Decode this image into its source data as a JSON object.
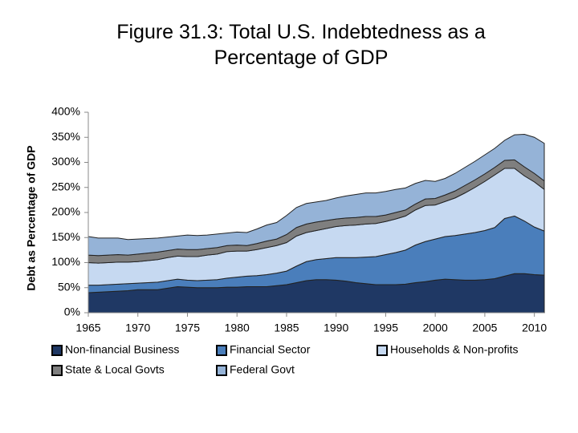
{
  "chart_data": {
    "type": "stacked-area",
    "title": "Figure 31.3: Total U.S. Indebtedness as a Percentage of GDP",
    "y_label": "Debt as Percentage of GDP",
    "x": [
      1965,
      1966,
      1967,
      1968,
      1969,
      1970,
      1971,
      1972,
      1973,
      1974,
      1975,
      1976,
      1977,
      1978,
      1979,
      1980,
      1981,
      1982,
      1983,
      1984,
      1985,
      1986,
      1987,
      1988,
      1989,
      1990,
      1991,
      1992,
      1993,
      1994,
      1995,
      1996,
      1997,
      1998,
      1999,
      2000,
      2001,
      2002,
      2003,
      2004,
      2005,
      2006,
      2007,
      2008,
      2009,
      2010,
      2011
    ],
    "xlim": [
      1965,
      2011
    ],
    "xticks": [
      1965,
      1970,
      1975,
      1980,
      1985,
      1990,
      1995,
      2000,
      2005,
      2010
    ],
    "ylim": [
      0,
      400
    ],
    "yticks": [
      {
        "value": 0,
        "label": "0%"
      },
      {
        "value": 50,
        "label": "50%"
      },
      {
        "value": 100,
        "label": "100%"
      },
      {
        "value": 150,
        "label": "150%"
      },
      {
        "value": 200,
        "label": "200%"
      },
      {
        "value": 250,
        "label": "250%"
      },
      {
        "value": 300,
        "label": "300%"
      },
      {
        "value": 350,
        "label": "350%"
      },
      {
        "value": 400,
        "label": "400%"
      }
    ],
    "series": [
      {
        "name": "Non-financial Business",
        "color": "#1f3864",
        "values": [
          40,
          41,
          42,
          43,
          44,
          46,
          46,
          46,
          49,
          52,
          51,
          50,
          50,
          50,
          51,
          51,
          52,
          52,
          52,
          54,
          56,
          60,
          64,
          66,
          66,
          65,
          63,
          60,
          58,
          56,
          56,
          56,
          57,
          60,
          62,
          65,
          67,
          66,
          65,
          65,
          66,
          68,
          73,
          78,
          78,
          76,
          75
        ]
      },
      {
        "name": "Financial Sector",
        "color": "#4a7ebb",
        "values": [
          15,
          14,
          14,
          14,
          14,
          13,
          14,
          15,
          15,
          15,
          14,
          14,
          15,
          16,
          18,
          20,
          21,
          22,
          24,
          25,
          27,
          33,
          38,
          40,
          42,
          45,
          47,
          50,
          53,
          56,
          60,
          64,
          68,
          75,
          80,
          82,
          85,
          88,
          92,
          95,
          98,
          102,
          115,
          115,
          105,
          95,
          88
        ]
      },
      {
        "name": "Households & Non-profits",
        "color": "#c6d9f1",
        "values": [
          45,
          44,
          44,
          44,
          43,
          43,
          44,
          45,
          46,
          46,
          47,
          48,
          50,
          51,
          53,
          52,
          50,
          52,
          54,
          55,
          57,
          60,
          58,
          58,
          60,
          62,
          64,
          65,
          66,
          66,
          66,
          67,
          68,
          70,
          72,
          68,
          70,
          75,
          82,
          90,
          98,
          105,
          100,
          95,
          90,
          90,
          83
        ]
      },
      {
        "name": "State & Local Govts",
        "color": "#7f7f7f",
        "values": [
          15,
          15,
          15,
          15,
          14,
          15,
          15,
          15,
          14,
          14,
          14,
          14,
          13,
          13,
          12,
          12,
          11,
          12,
          13,
          13,
          16,
          17,
          17,
          17,
          16,
          15,
          15,
          15,
          15,
          14,
          13,
          13,
          12,
          12,
          13,
          13,
          13,
          14,
          15,
          15,
          15,
          15,
          16,
          17,
          18,
          17,
          17
        ]
      },
      {
        "name": "Federal Govt",
        "color": "#95b3d7",
        "values": [
          37,
          35,
          34,
          33,
          31,
          30,
          29,
          28,
          27,
          26,
          29,
          28,
          27,
          27,
          25,
          26,
          26,
          29,
          32,
          33,
          38,
          40,
          41,
          40,
          40,
          42,
          44,
          46,
          47,
          47,
          47,
          46,
          44,
          41,
          37,
          34,
          33,
          35,
          36,
          37,
          38,
          38,
          40,
          50,
          65,
          72,
          75
        ]
      }
    ]
  }
}
